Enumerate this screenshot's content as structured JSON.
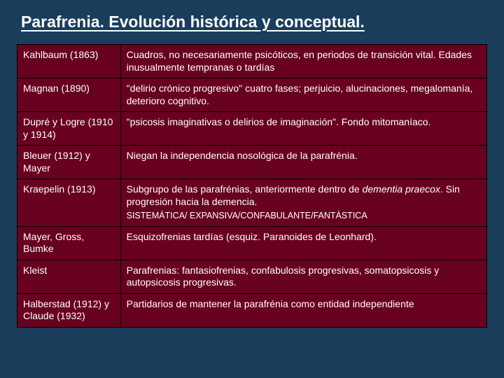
{
  "slide": {
    "title": "Parafrenia. Evolución histórica y conceptual.",
    "background_color": "#1a3d5c",
    "cell_background": "#68001f",
    "border_color": "#000000",
    "text_color": "#ffffff",
    "title_fontsize": 23,
    "body_fontsize": 14,
    "columns": {
      "author_width_pct": 22,
      "desc_width_pct": 78
    },
    "rows": [
      {
        "author": "Kahlbaum (1863)",
        "desc": "Cuadros, no necesariamente psicóticos, en periodos de transición vital. Edades inusualmente tempranas o tardías"
      },
      {
        "author": "Magnan (1890)",
        "desc": "\"delirio crónico progresivo\" cuatro fases; perjuicio, alucinaciones, megalomanía, deterioro cognitivo."
      },
      {
        "author": "Dupré y Logre (1910 y 1914)",
        "desc": "\"psicosis imaginativas o delirios de imaginación\". Fondo mitomaníaco."
      },
      {
        "author": "Bleuer (1912) y Mayer",
        "desc": "Niegan la independencia nosológica de la parafrénia."
      },
      {
        "author": "Kraepelin (1913)",
        "desc": "Subgrupo de las parafrénias, anteriormente dentro de dementia praecox. Sin progresión hacia la demencia.",
        "sub": "SISTEMÁTICA/ EXPANSIVA/CONFABULANTE/FANTÁSTICA"
      },
      {
        "author": "Mayer, Gross, Bumke",
        "desc": "Esquizofrenias tardías (esquiz. Paranoides de Leonhard)."
      },
      {
        "author": "Kleist",
        "desc": "Parafrenias: fantasiofrenias, confabulosis progresivas, somatopsicosis y autopsicosis progresivas."
      },
      {
        "author": "Halberstad (1912) y Claude (1932)",
        "desc": "Partidarios de mantener la parafrénia como entidad independiente"
      }
    ]
  }
}
